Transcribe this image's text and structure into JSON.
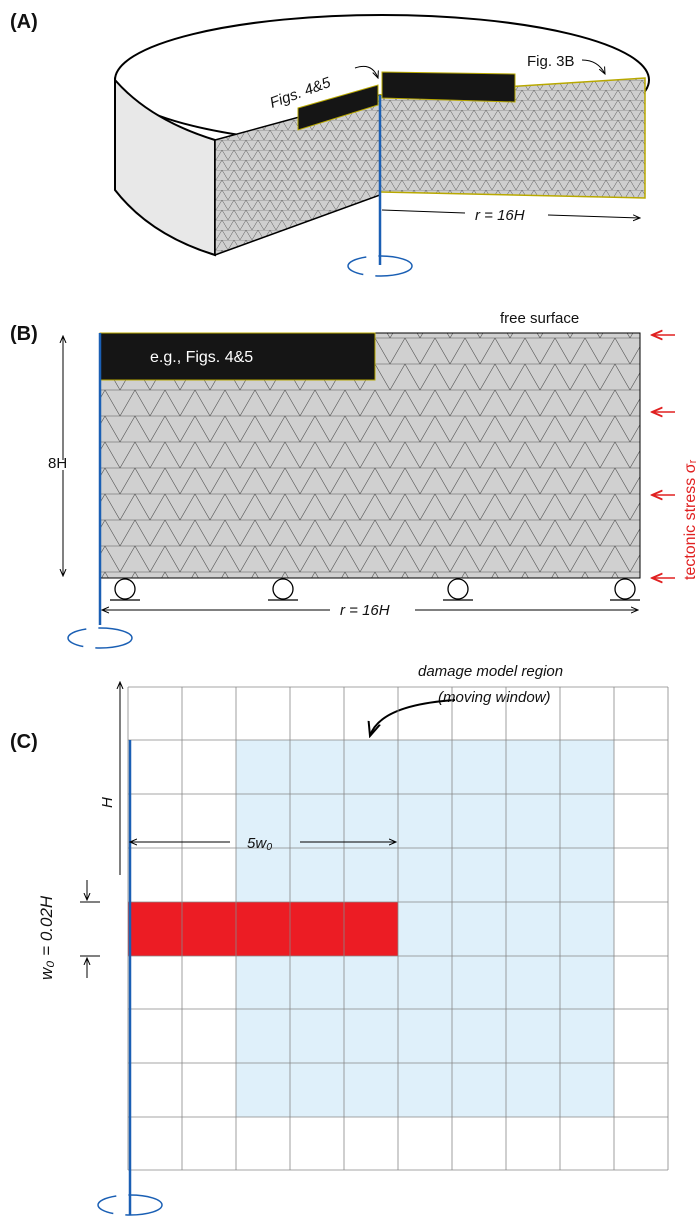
{
  "panel_a": {
    "label": "(A)",
    "callout_left": "Figs. 4&5",
    "callout_right": "Fig. 3B",
    "radius_label": "r = 16H"
  },
  "panel_b": {
    "label": "(B)",
    "top_label": "free surface",
    "inset_label": "e.g., Figs. 4&5",
    "height_label": "8H",
    "stress_label": "tectonic stress σᵣ",
    "radius_label": "r = 16H"
  },
  "panel_c": {
    "label": "(C)",
    "region_title": "damage model region",
    "region_subtitle": "(moving window)",
    "height_label": "H",
    "length_label": "5w₀",
    "width_label": "w₀ = 0.02H"
  }
}
